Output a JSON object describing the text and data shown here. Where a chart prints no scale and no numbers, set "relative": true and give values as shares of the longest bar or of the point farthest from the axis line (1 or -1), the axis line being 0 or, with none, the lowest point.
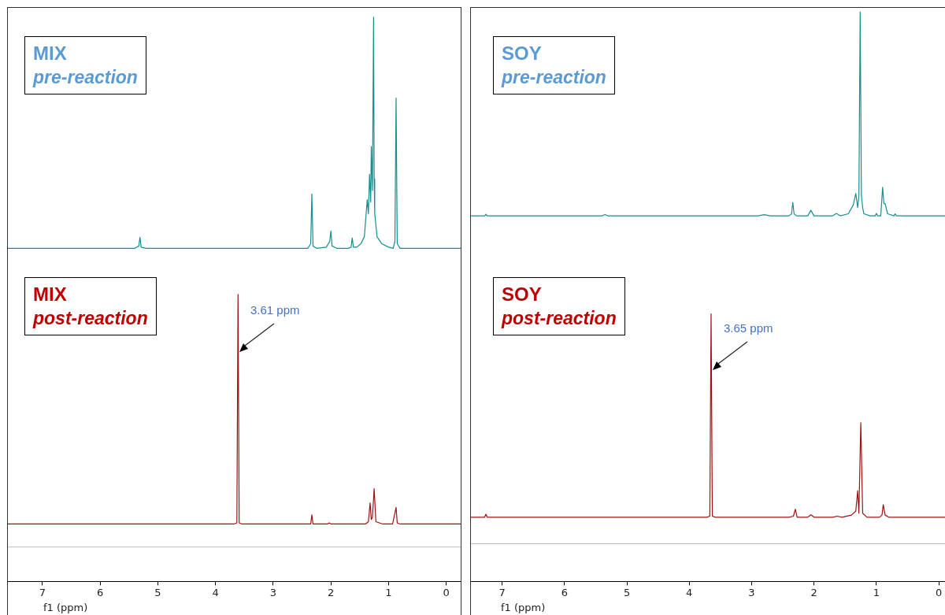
{
  "chart_data": [
    {
      "type": "line",
      "title": "MIX",
      "subtitle": "pre-reaction",
      "relative": true,
      "tick_labels": false,
      "xlim": [
        7.6,
        -0.25
      ],
      "color": "#178f8f",
      "x": [
        7.6,
        5.4,
        5.33,
        5.31,
        5.29,
        5.2,
        2.8,
        2.4,
        2.35,
        2.33,
        2.31,
        2.25,
        2.08,
        2.02,
        2.0,
        1.98,
        1.9,
        1.7,
        1.65,
        1.63,
        1.61,
        1.55,
        1.48,
        1.42,
        1.37,
        1.35,
        1.33,
        1.31,
        1.3,
        1.28,
        1.26,
        1.25,
        1.24,
        1.2,
        1.12,
        1.0,
        0.92,
        0.89,
        0.87,
        0.85,
        0.8,
        -0.25
      ],
      "values": [
        0,
        0,
        0.01,
        0.048,
        0.005,
        0,
        0,
        0,
        0.02,
        0.235,
        0.01,
        0,
        0.005,
        0.03,
        0.075,
        0.01,
        0,
        0,
        0.005,
        0.045,
        0.005,
        0.005,
        0.02,
        0.05,
        0.21,
        0.15,
        0.32,
        0.2,
        0.44,
        0.25,
        1,
        0.3,
        0.15,
        0.05,
        0.02,
        0.005,
        0,
        0.03,
        0.65,
        0.02,
        0,
        0
      ]
    },
    {
      "type": "line",
      "title": "MIX",
      "subtitle": "post-reaction",
      "relative": true,
      "xlabel": "f1 (ppm)",
      "xlim": [
        7.6,
        -0.25
      ],
      "color": "#a01010",
      "xticks": [
        7,
        6,
        5,
        4,
        3,
        2,
        1,
        0
      ],
      "x": [
        7.6,
        3.68,
        3.63,
        3.61,
        3.59,
        3.54,
        2.4,
        2.35,
        2.33,
        2.31,
        2.26,
        2.06,
        2.03,
        2.0,
        1.4,
        1.35,
        1.32,
        1.3,
        1.28,
        1.25,
        1.22,
        1.1,
        0.93,
        0.87,
        0.85,
        0.8,
        -0.25
      ],
      "values": [
        0.2,
        0.2,
        0.204,
        1,
        0.204,
        0.2,
        0.2,
        0.2,
        0.232,
        0.2,
        0.2,
        0.2,
        0.204,
        0.2,
        0.2,
        0.208,
        0.274,
        0.216,
        0.224,
        0.323,
        0.208,
        0.2,
        0.2,
        0.258,
        0.204,
        0.2,
        0.2
      ],
      "ref_lines": [
        {
          "axis": "y",
          "value": 0.12,
          "color": "#bfbfbf"
        }
      ],
      "annotations": [
        "3.61 ppm"
      ]
    },
    {
      "type": "line",
      "title": "SOY",
      "subtitle": "pre-reaction",
      "relative": true,
      "tick_labels": false,
      "xlim": [
        7.5,
        -0.1
      ],
      "color": "#178f8f",
      "x": [
        7.5,
        7.28,
        7.26,
        7.24,
        5.4,
        5.35,
        5.3,
        2.9,
        2.8,
        2.7,
        2.4,
        2.36,
        2.34,
        2.32,
        2.28,
        2.1,
        2.05,
        2.0,
        1.7,
        1.64,
        1.58,
        1.45,
        1.37,
        1.33,
        1.3,
        1.28,
        1.26,
        1.24,
        1.22,
        1.2,
        1.1,
        1.02,
        1.0,
        0.98,
        0.93,
        0.9,
        0.88,
        0.86,
        0.82,
        0.72,
        0.7,
        0.68,
        -0.1
      ],
      "values": [
        0,
        0,
        0.008,
        0,
        0,
        0.006,
        0,
        0,
        0.006,
        0,
        0,
        0.01,
        0.066,
        0.01,
        0,
        0,
        0.027,
        0,
        0,
        0.012,
        0,
        0.01,
        0.054,
        0.11,
        0.04,
        0.1,
        1,
        0.1,
        0.04,
        0.01,
        0,
        0,
        0.012,
        0,
        0,
        0.14,
        0.06,
        0.06,
        0.01,
        0,
        0.01,
        0,
        0
      ]
    },
    {
      "type": "line",
      "title": "SOY",
      "subtitle": "post-reaction",
      "relative": true,
      "xlabel": "f1 (ppm)",
      "xlim": [
        7.5,
        -0.1
      ],
      "color": "#a01010",
      "xticks": [
        7,
        6,
        5,
        4,
        3,
        2,
        1,
        0
      ],
      "x": [
        7.5,
        7.28,
        7.26,
        7.24,
        3.72,
        3.67,
        3.65,
        3.63,
        3.58,
        2.4,
        2.33,
        2.3,
        2.27,
        2.1,
        2.05,
        2.0,
        1.7,
        1.63,
        1.55,
        1.4,
        1.33,
        1.3,
        1.28,
        1.25,
        1.22,
        1.15,
        0.95,
        0.91,
        0.89,
        0.86,
        0.8,
        -0.1
      ],
      "values": [
        0.24,
        0.24,
        0.251,
        0.24,
        0.24,
        0.244,
        1,
        0.244,
        0.24,
        0.24,
        0.244,
        0.27,
        0.24,
        0.24,
        0.249,
        0.24,
        0.24,
        0.244,
        0.24,
        0.248,
        0.263,
        0.339,
        0.255,
        0.593,
        0.255,
        0.24,
        0.24,
        0.248,
        0.287,
        0.248,
        0.24,
        0.24
      ],
      "ref_lines": [
        {
          "axis": "y",
          "value": 0.141,
          "color": "#bfbfbf"
        }
      ],
      "annotations": [
        "3.65 ppm"
      ]
    }
  ]
}
